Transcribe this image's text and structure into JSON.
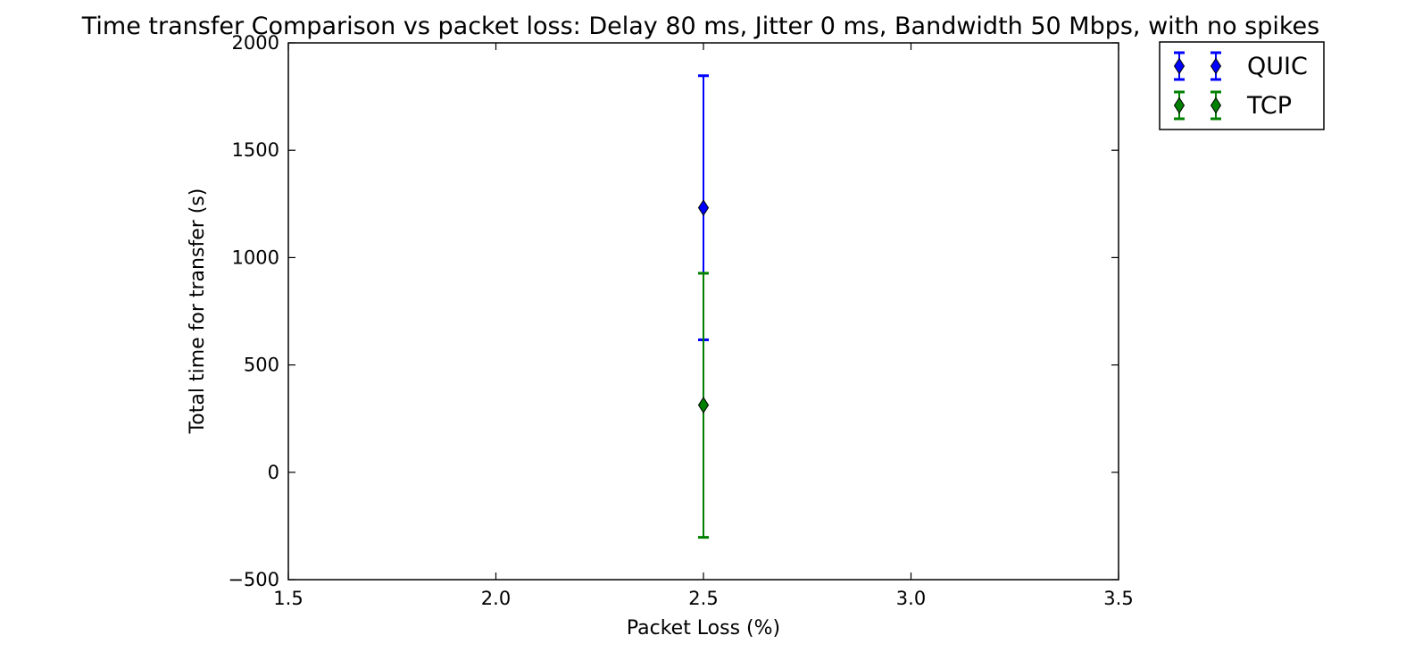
{
  "chart_data": {
    "type": "scatter",
    "title": "Time transfer Comparison vs packet loss: Delay 80 ms, Jitter 0 ms, Bandwidth 50 Mbps, with no spikes",
    "xlabel": "Packet Loss (%)",
    "ylabel": "Total time for transfer (s)",
    "xlim": [
      1.5,
      3.5
    ],
    "ylim": [
      -500,
      2000
    ],
    "xticks": [
      1.5,
      2.0,
      2.5,
      3.0,
      3.5
    ],
    "xtick_labels": [
      "1.5",
      "2.0",
      "2.5",
      "3.0",
      "3.5"
    ],
    "yticks": [
      -500,
      0,
      500,
      1000,
      1500,
      2000
    ],
    "ytick_labels": [
      "−500",
      "0",
      "500",
      "1000",
      "1500",
      "2000"
    ],
    "grid": false,
    "legend_position": "outside-top-right",
    "series": [
      {
        "name": "QUIC",
        "color": "#0000ff",
        "marker": "diamond",
        "x": [
          2.5
        ],
        "y": [
          1232
        ],
        "yerr_low": [
          617
        ],
        "yerr_high": [
          1847
        ]
      },
      {
        "name": "TCP",
        "color": "#008000",
        "marker": "diamond",
        "x": [
          2.5
        ],
        "y": [
          313
        ],
        "yerr_low": [
          -303
        ],
        "yerr_high": [
          927
        ]
      }
    ]
  }
}
